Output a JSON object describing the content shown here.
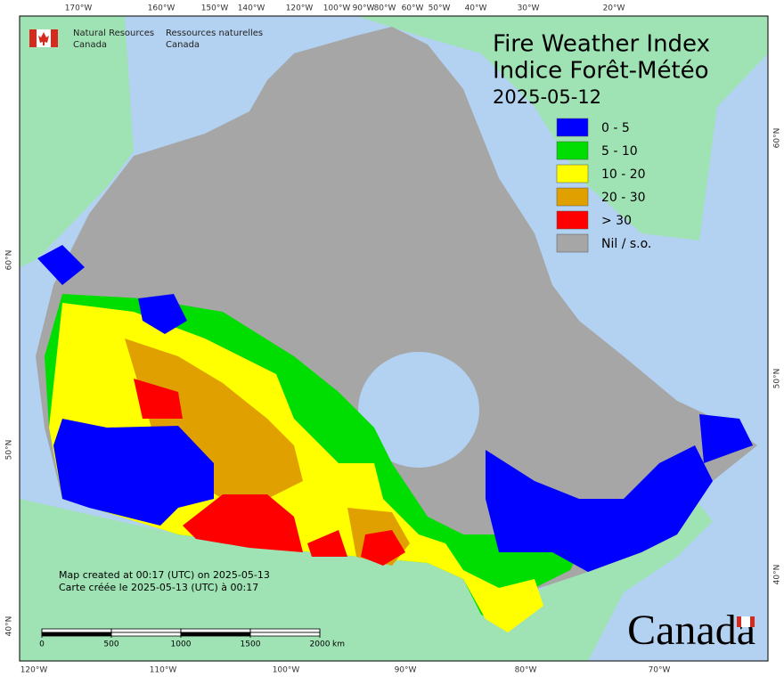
{
  "header": {
    "agency_en_line1": "Natural Resources",
    "agency_en_line2": "Canada",
    "agency_fr_line1": "Ressources naturelles",
    "agency_fr_line2": "Canada"
  },
  "title": {
    "line1": "Fire Weather Index",
    "line2": "Indice Forêt-Météo",
    "date": "2025-05-12"
  },
  "legend": [
    {
      "label": "0 - 5",
      "color": "#0000ff"
    },
    {
      "label": "5 - 10",
      "color": "#00dd00"
    },
    {
      "label": "10 - 20",
      "color": "#ffff00"
    },
    {
      "label": "20 - 30",
      "color": "#e0a000"
    },
    {
      "label": "> 30",
      "color": "#ff0000"
    },
    {
      "label": "Nil / s.o.",
      "color": "#a6a6a6"
    }
  ],
  "axes": {
    "top": [
      "170°W",
      "160°W",
      "150°W",
      "140°W",
      "120°W",
      "100°W",
      "90°W",
      "80°W",
      "60°W",
      "50°W",
      "40°W",
      "30°W",
      "20°W"
    ],
    "bottom": [
      "120°W",
      "110°W",
      "100°W",
      "90°W",
      "80°W",
      "70°W"
    ],
    "left": [
      "60°N",
      "50°N",
      "40°N"
    ],
    "right": [
      "60°N",
      "50°N",
      "40°N"
    ]
  },
  "note": {
    "line1": "Map created at 00:17 (UTC) on 2025-05-13",
    "line2": "Carte créée le 2025-05-13 (UTC) à 00:17"
  },
  "scale_bar": {
    "ticks": [
      0,
      500,
      1000,
      1500,
      2000
    ],
    "unit": "km"
  },
  "wordmark": "Canada"
}
